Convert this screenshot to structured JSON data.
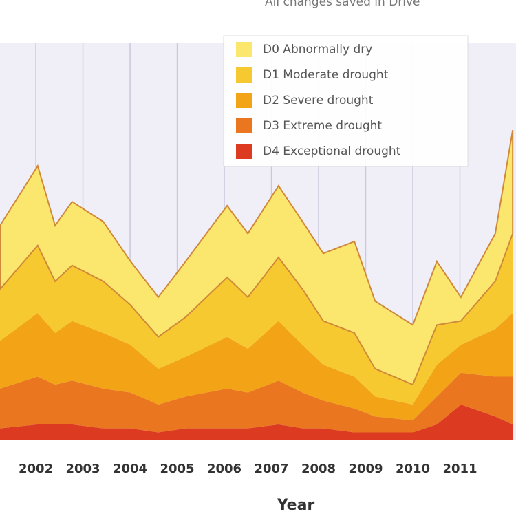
{
  "status": "All changes saved in Drive",
  "chart_data": {
    "type": "stacked_area",
    "x_label": "Year",
    "x": [
      2001.24,
      2002.04,
      2002.41,
      2002.77,
      2003.43,
      2004.01,
      2004.6,
      2005.18,
      2006.06,
      2006.5,
      2007.15,
      2007.66,
      2008.1,
      2008.76,
      2009.2,
      2010.0,
      2010.51,
      2011.02,
      2011.75,
      2012.12
    ],
    "xlim": [
      2001.24,
      2012.19
    ],
    "xticks": [
      {
        "value": 2002,
        "label": "2002"
      },
      {
        "value": 2003,
        "label": "2003"
      },
      {
        "value": 2004,
        "label": "2004"
      },
      {
        "value": 2005,
        "label": "2005"
      },
      {
        "value": 2006,
        "label": "2006"
      },
      {
        "value": 2007,
        "label": "2007"
      },
      {
        "value": 2008,
        "label": "2008"
      },
      {
        "value": 2009,
        "label": "2009"
      },
      {
        "value": 2010,
        "label": "2010"
      },
      {
        "value": 2011,
        "label": "2011"
      }
    ],
    "ylim": [
      0,
      100
    ],
    "grid": true,
    "series": [
      {
        "name": "D4 Exceptional drought",
        "color": "#dc3b22",
        "values": [
          3,
          4,
          4,
          4,
          3,
          3,
          2,
          3,
          3,
          3,
          4,
          3,
          3,
          2,
          2,
          2,
          4,
          9,
          6,
          4
        ]
      },
      {
        "name": "D3 Extreme drought",
        "color": "#ea7620",
        "values": [
          10,
          12,
          10,
          11,
          10,
          9,
          7,
          8,
          10,
          9,
          11,
          9,
          7,
          6,
          4,
          3,
          7,
          8,
          10,
          12
        ]
      },
      {
        "name": "D2 Severe drought",
        "color": "#f2a316",
        "values": [
          12,
          16,
          13,
          15,
          14,
          12,
          9,
          10,
          13,
          11,
          15,
          12,
          9,
          8,
          5,
          4,
          8,
          7,
          12,
          16
        ]
      },
      {
        "name": "D1 Moderate drought",
        "color": "#f7c930",
        "values": [
          13,
          17,
          13,
          14,
          13,
          10,
          8,
          10,
          15,
          13,
          16,
          14,
          11,
          11,
          7,
          5,
          10,
          6,
          12,
          20
        ]
      },
      {
        "name": "D0 Abnormally dry",
        "color": "#fbe66e",
        "values": [
          16,
          20,
          14,
          16,
          15,
          11,
          10,
          14,
          18,
          16,
          18,
          17,
          17,
          23,
          17,
          15,
          16,
          6,
          12,
          26
        ]
      }
    ]
  }
}
